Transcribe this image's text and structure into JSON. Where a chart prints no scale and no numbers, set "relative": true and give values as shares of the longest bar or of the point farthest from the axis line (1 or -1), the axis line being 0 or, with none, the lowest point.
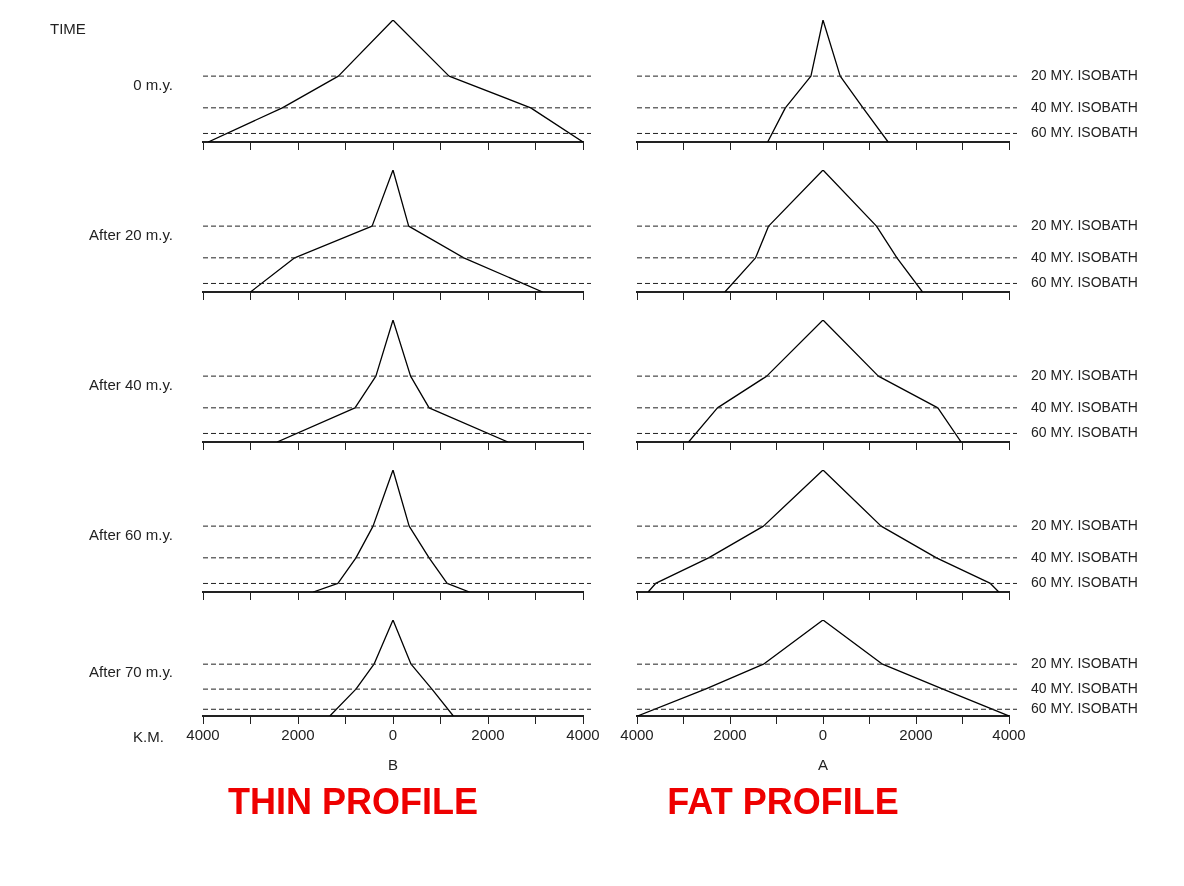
{
  "chart_data": [
    {
      "type": "line",
      "title": "0 m.y.",
      "annotations": [
        "TIME"
      ],
      "x": [
        -3890,
        -2330,
        -1150,
        0,
        1180,
        2900,
        4000
      ],
      "values": [
        0,
        0.28,
        0.54,
        1,
        0.54,
        0.28,
        0
      ],
      "color": "#000000",
      "relative": true,
      "xlim": [
        -4000,
        4000
      ],
      "xticks": [
        -4000,
        {
          "value": -3000,
          "label": null
        },
        -2000,
        {
          "value": -1000,
          "label": null
        },
        0,
        {
          "value": 1000,
          "label": null
        },
        2000,
        {
          "value": 3000,
          "label": null
        },
        4000
      ],
      "tick_labels": false,
      "ref_lines": [
        {
          "axis": "y",
          "value": 0.54,
          "label": null,
          "line_style": "dashed"
        },
        {
          "axis": "y",
          "value": 0.28,
          "label": null,
          "line_style": "dashed"
        },
        {
          "axis": "y",
          "value": 0.07,
          "label": null,
          "line_style": "dashed"
        }
      ]
    },
    {
      "type": "line",
      "x": [
        -1190,
        -810,
        -260,
        0,
        370,
        860,
        1400
      ],
      "values": [
        0,
        0.28,
        0.54,
        1,
        0.54,
        0.28,
        0
      ],
      "color": "#000000",
      "relative": true,
      "xlim": [
        -4000,
        4000
      ],
      "xticks": [
        -4000,
        {
          "value": -3000,
          "label": null
        },
        -2000,
        {
          "value": -1000,
          "label": null
        },
        0,
        {
          "value": 1000,
          "label": null
        },
        2000,
        {
          "value": 3000,
          "label": null
        },
        4000
      ],
      "tick_labels": false,
      "ref_lines": [
        {
          "axis": "y",
          "value": 0.54,
          "label": "20 MY. ISOBATH",
          "line_style": "dashed"
        },
        {
          "axis": "y",
          "value": 0.28,
          "label": "40 MY. ISOBATH",
          "line_style": "dashed"
        },
        {
          "axis": "y",
          "value": 0.07,
          "label": "60 MY. ISOBATH",
          "line_style": "dashed"
        }
      ]
    },
    {
      "type": "line",
      "title": "After 20 m.y.",
      "x": [
        -3000,
        -2070,
        -440,
        0,
        330,
        1490,
        3150
      ],
      "values": [
        0,
        0.28,
        0.54,
        1,
        0.54,
        0.28,
        0
      ],
      "color": "#000000",
      "relative": true,
      "xlim": [
        -4000,
        4000
      ],
      "xticks": [
        -4000,
        {
          "value": -3000,
          "label": null
        },
        -2000,
        {
          "value": -1000,
          "label": null
        },
        0,
        {
          "value": 1000,
          "label": null
        },
        2000,
        {
          "value": 3000,
          "label": null
        },
        4000
      ],
      "tick_labels": false,
      "ref_lines": [
        {
          "axis": "y",
          "value": 0.54,
          "label": null,
          "line_style": "dashed"
        },
        {
          "axis": "y",
          "value": 0.28,
          "label": null,
          "line_style": "dashed"
        },
        {
          "axis": "y",
          "value": 0.07,
          "label": null,
          "line_style": "dashed"
        }
      ]
    },
    {
      "type": "line",
      "x": [
        -2110,
        -1450,
        -1170,
        0,
        1150,
        1590,
        2140
      ],
      "values": [
        0,
        0.28,
        0.54,
        1,
        0.54,
        0.28,
        0
      ],
      "color": "#000000",
      "relative": true,
      "xlim": [
        -4000,
        4000
      ],
      "xticks": [
        -4000,
        {
          "value": -3000,
          "label": null
        },
        -2000,
        {
          "value": -1000,
          "label": null
        },
        0,
        {
          "value": 1000,
          "label": null
        },
        2000,
        {
          "value": 3000,
          "label": null
        },
        4000
      ],
      "tick_labels": false,
      "ref_lines": [
        {
          "axis": "y",
          "value": 0.54,
          "label": "20 MY. ISOBATH",
          "line_style": "dashed"
        },
        {
          "axis": "y",
          "value": 0.28,
          "label": "40 MY. ISOBATH",
          "line_style": "dashed"
        },
        {
          "axis": "y",
          "value": 0.07,
          "label": "60 MY. ISOBATH",
          "line_style": "dashed"
        }
      ]
    },
    {
      "type": "line",
      "title": "After 40 m.y.",
      "x": [
        -2440,
        -800,
        -360,
        0,
        370,
        760,
        2420
      ],
      "values": [
        0,
        0.28,
        0.54,
        1,
        0.54,
        0.28,
        0
      ],
      "color": "#000000",
      "relative": true,
      "xlim": [
        -4000,
        4000
      ],
      "xticks": [
        -4000,
        {
          "value": -3000,
          "label": null
        },
        -2000,
        {
          "value": -1000,
          "label": null
        },
        0,
        {
          "value": 1000,
          "label": null
        },
        2000,
        {
          "value": 3000,
          "label": null
        },
        4000
      ],
      "tick_labels": false,
      "ref_lines": [
        {
          "axis": "y",
          "value": 0.54,
          "label": null,
          "line_style": "dashed"
        },
        {
          "axis": "y",
          "value": 0.28,
          "label": null,
          "line_style": "dashed"
        },
        {
          "axis": "y",
          "value": 0.07,
          "label": null,
          "line_style": "dashed"
        }
      ]
    },
    {
      "type": "line",
      "x": [
        -2890,
        -2270,
        -1210,
        0,
        1190,
        2470,
        2970
      ],
      "values": [
        0,
        0.28,
        0.54,
        1,
        0.54,
        0.28,
        0
      ],
      "color": "#000000",
      "relative": true,
      "xlim": [
        -4000,
        4000
      ],
      "xticks": [
        -4000,
        {
          "value": -3000,
          "label": null
        },
        -2000,
        {
          "value": -1000,
          "label": null
        },
        0,
        {
          "value": 1000,
          "label": null
        },
        2000,
        {
          "value": 3000,
          "label": null
        },
        4000
      ],
      "tick_labels": false,
      "ref_lines": [
        {
          "axis": "y",
          "value": 0.54,
          "label": "20 MY. ISOBATH",
          "line_style": "dashed"
        },
        {
          "axis": "y",
          "value": 0.28,
          "label": "40 MY. ISOBATH",
          "line_style": "dashed"
        },
        {
          "axis": "y",
          "value": 0.07,
          "label": "60 MY. ISOBATH",
          "line_style": "dashed"
        }
      ]
    },
    {
      "type": "line",
      "title": "After 60 m.y.",
      "x": [
        -1680,
        -1160,
        -780,
        -420,
        0,
        340,
        760,
        1140,
        1610
      ],
      "values": [
        0,
        0.07,
        0.28,
        0.54,
        1,
        0.54,
        0.28,
        0.07,
        0
      ],
      "color": "#000000",
      "relative": true,
      "xlim": [
        -4000,
        4000
      ],
      "xticks": [
        -4000,
        {
          "value": -3000,
          "label": null
        },
        -2000,
        {
          "value": -1000,
          "label": null
        },
        0,
        {
          "value": 1000,
          "label": null
        },
        2000,
        {
          "value": 3000,
          "label": null
        },
        4000
      ],
      "tick_labels": false,
      "ref_lines": [
        {
          "axis": "y",
          "value": 0.54,
          "label": null,
          "line_style": "dashed"
        },
        {
          "axis": "y",
          "value": 0.28,
          "label": null,
          "line_style": "dashed"
        },
        {
          "axis": "y",
          "value": 0.07,
          "label": null,
          "line_style": "dashed"
        }
      ]
    },
    {
      "type": "line",
      "x": [
        -3760,
        -3600,
        -2460,
        -1280,
        0,
        1250,
        2440,
        3600,
        3780
      ],
      "values": [
        0,
        0.07,
        0.28,
        0.54,
        1,
        0.54,
        0.28,
        0.07,
        0
      ],
      "color": "#000000",
      "relative": true,
      "xlim": [
        -4000,
        4000
      ],
      "xticks": [
        -4000,
        {
          "value": -3000,
          "label": null
        },
        -2000,
        {
          "value": -1000,
          "label": null
        },
        0,
        {
          "value": 1000,
          "label": null
        },
        2000,
        {
          "value": 3000,
          "label": null
        },
        4000
      ],
      "tick_labels": false,
      "ref_lines": [
        {
          "axis": "y",
          "value": 0.54,
          "label": "20 MY. ISOBATH",
          "line_style": "dashed"
        },
        {
          "axis": "y",
          "value": 0.28,
          "label": "40 MY. ISOBATH",
          "line_style": "dashed"
        },
        {
          "axis": "y",
          "value": 0.07,
          "label": "60 MY. ISOBATH",
          "line_style": "dashed"
        }
      ]
    },
    {
      "type": "line",
      "title": "After 70 m.y.",
      "xlabel": "B",
      "subtitle": "THIN PROFILE",
      "annotations": [
        "K.M."
      ],
      "x": [
        -1330,
        -780,
        -400,
        0,
        380,
        820,
        1270
      ],
      "values": [
        0,
        0.28,
        0.54,
        1,
        0.54,
        0.28,
        0
      ],
      "color": "#000000",
      "relative": true,
      "xlim": [
        -4000,
        4000
      ],
      "xticks": [
        {
          "value": -4000,
          "label": "4000"
        },
        {
          "value": -3000,
          "label": null
        },
        {
          "value": -2000,
          "label": "2000"
        },
        {
          "value": -1000,
          "label": null
        },
        0,
        {
          "value": 1000,
          "label": null
        },
        2000,
        {
          "value": 3000,
          "label": null
        },
        4000
      ],
      "tick_labels": "x",
      "ref_lines": [
        {
          "axis": "y",
          "value": 0.54,
          "label": null,
          "line_style": "dashed"
        },
        {
          "axis": "y",
          "value": 0.28,
          "label": null,
          "line_style": "dashed"
        },
        {
          "axis": "y",
          "value": 0.07,
          "label": null,
          "line_style": "dashed"
        }
      ]
    },
    {
      "type": "line",
      "xlabel": "A",
      "subtitle": "FAT PROFILE",
      "x": [
        -3990,
        -2530,
        -1280,
        0,
        1280,
        2580,
        4000
      ],
      "values": [
        0,
        0.28,
        0.54,
        1,
        0.54,
        0.28,
        0
      ],
      "color": "#000000",
      "relative": true,
      "xlim": [
        -4000,
        4000
      ],
      "xticks": [
        {
          "value": -4000,
          "label": "4000"
        },
        {
          "value": -3000,
          "label": null
        },
        {
          "value": -2000,
          "label": "2000"
        },
        {
          "value": -1000,
          "label": null
        },
        0,
        {
          "value": 1000,
          "label": null
        },
        2000,
        {
          "value": 3000,
          "label": null
        },
        4000
      ],
      "tick_labels": "x",
      "ref_lines": [
        {
          "axis": "y",
          "value": 0.54,
          "label": "20 MY. ISOBATH",
          "line_style": "dashed"
        },
        {
          "axis": "y",
          "value": 0.28,
          "label": "40 MY. ISOBATH",
          "line_style": "dashed"
        },
        {
          "axis": "y",
          "value": 0.07,
          "label": "60 MY. ISOBATH",
          "line_style": "dashed"
        }
      ]
    }
  ]
}
